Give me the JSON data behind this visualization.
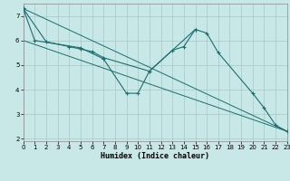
{
  "xlabel": "Humidex (Indice chaleur)",
  "bg_color": "#c8e8e8",
  "line_color": "#1a6e6e",
  "grid_color": "#a8c8c8",
  "xlim": [
    0,
    23
  ],
  "ylim": [
    1.9,
    7.5
  ],
  "yticks": [
    2,
    3,
    4,
    5,
    6,
    7
  ],
  "xticks": [
    0,
    1,
    2,
    3,
    4,
    5,
    6,
    7,
    8,
    9,
    10,
    11,
    12,
    13,
    14,
    15,
    16,
    17,
    18,
    19,
    20,
    21,
    22,
    23
  ],
  "line1_x": [
    0,
    1,
    5,
    7,
    9,
    10,
    11,
    15,
    16,
    17,
    20,
    21,
    22,
    23
  ],
  "line1_y": [
    7.3,
    6.0,
    5.7,
    5.25,
    3.85,
    3.85,
    4.75,
    6.45,
    6.3,
    5.5,
    3.85,
    3.25,
    2.55,
    2.3
  ],
  "line2_x": [
    0,
    2,
    4,
    5,
    6,
    7,
    11,
    13,
    14,
    15
  ],
  "line2_y": [
    7.3,
    5.95,
    5.75,
    5.65,
    5.55,
    5.3,
    4.75,
    5.6,
    5.75,
    6.45
  ],
  "trend1_x": [
    0,
    23
  ],
  "trend1_y": [
    7.3,
    2.3
  ],
  "trend2_x": [
    0,
    23
  ],
  "trend2_y": [
    6.0,
    2.3
  ]
}
